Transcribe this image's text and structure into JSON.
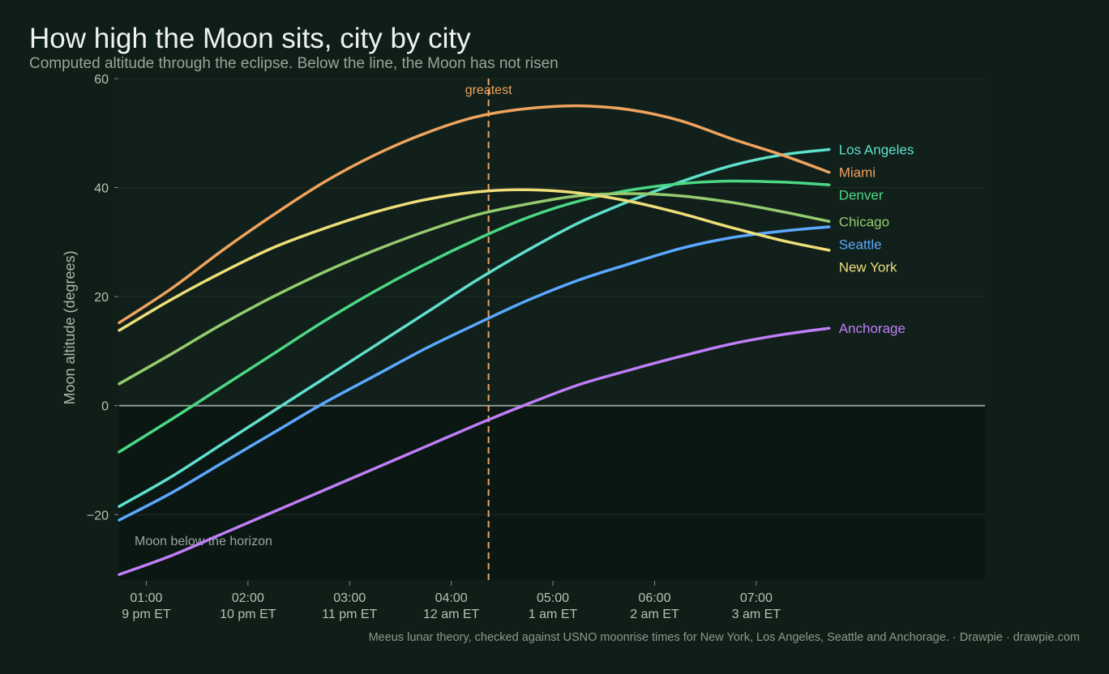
{
  "header": {
    "title": "How high the Moon sits, city by city",
    "subtitle": "Computed altitude through the eclipse. Below the line, the Moon has not risen"
  },
  "footer": {
    "text": "Meeus lunar theory, checked against USNO moonrise times for New York, Los Angeles, Seattle and Anchorage.  ·  Drawpie · drawpie.com"
  },
  "colors": {
    "background": "#101e18",
    "below_horizon_band": "#0b1712",
    "horizon_line": "#8d9a92",
    "greatest_marker": "#f0a35e"
  },
  "chart_data": {
    "type": "line",
    "ylabel": "Moon altitude (degrees)",
    "xlabel": "",
    "ylim": [
      -32,
      60
    ],
    "xlim": [
      "00:44",
      "09:15"
    ],
    "yticks": [
      60,
      40,
      20,
      0,
      -20
    ],
    "yticklabels": [
      "60",
      "40",
      "20",
      "0",
      "−20"
    ],
    "xticks": [
      {
        "utc": "01:00",
        "local": "9 pm ET"
      },
      {
        "utc": "02:00",
        "local": "10 pm ET"
      },
      {
        "utc": "03:00",
        "local": "11 pm ET"
      },
      {
        "utc": "04:00",
        "local": "12 am ET"
      },
      {
        "utc": "05:00",
        "local": "1 am ET"
      },
      {
        "utc": "06:00",
        "local": "2 am ET"
      },
      {
        "utc": "07:00",
        "local": "3 am ET"
      }
    ],
    "grid": true,
    "legend": "direct labels at line ends (right)",
    "x": [
      "00:44",
      "01:15",
      "01:45",
      "02:15",
      "02:45",
      "03:15",
      "03:45",
      "04:15",
      "04:45",
      "05:15",
      "05:45",
      "06:15",
      "06:45",
      "07:15",
      "07:43"
    ],
    "series": [
      {
        "name": "Los Angeles",
        "color": "#5fe0cc",
        "values": [
          -18.5,
          -13,
          -7,
          -1,
          5,
          11,
          17,
          23,
          28.5,
          33.5,
          37.5,
          41,
          44,
          46,
          47
        ]
      },
      {
        "name": "Miami",
        "color": "#f0a35e",
        "values": [
          15.2,
          21.5,
          28.5,
          35,
          41,
          46,
          50,
          53,
          54.5,
          55,
          54.3,
          52.3,
          49,
          46,
          42.8
        ]
      },
      {
        "name": "Denver",
        "color": "#4bd884",
        "values": [
          -8.5,
          -2.5,
          3.5,
          9.5,
          15.5,
          21,
          26,
          30.5,
          34.5,
          37.5,
          39.5,
          40.7,
          41.2,
          41,
          40.5
        ]
      },
      {
        "name": "Chicago",
        "color": "#95cb6f",
        "values": [
          4,
          9.5,
          15,
          20,
          24.5,
          28.5,
          32,
          35,
          37,
          38.5,
          38.9,
          38.5,
          37.3,
          35.6,
          33.8
        ]
      },
      {
        "name": "Seattle",
        "color": "#5ca8ff",
        "values": [
          -21,
          -16,
          -10.5,
          -5,
          0.5,
          5.5,
          10.5,
          15,
          19.3,
          23,
          26,
          28.8,
          30.8,
          32,
          32.8
        ]
      },
      {
        "name": "New York",
        "color": "#eede7a",
        "values": [
          13.8,
          19.5,
          24.5,
          29,
          32.5,
          35.5,
          37.8,
          39.2,
          39.6,
          39,
          37.5,
          35.3,
          32.7,
          30.3,
          28.5
        ]
      },
      {
        "name": "Anchorage",
        "color": "#c07ef8",
        "values": [
          -31,
          -27.5,
          -23.5,
          -19.5,
          -15.5,
          -11.5,
          -7.5,
          -3.5,
          0.3,
          3.8,
          6.5,
          9,
          11.3,
          13,
          14.2
        ]
      }
    ],
    "annotations": [
      {
        "kind": "vertical-line",
        "x": "04:22",
        "label": "greatest"
      },
      {
        "kind": "horizontal-line",
        "y": 0
      },
      {
        "kind": "shaded-region",
        "y_from": -32,
        "y_to": 0,
        "label": "Moon below the horizon"
      }
    ]
  }
}
